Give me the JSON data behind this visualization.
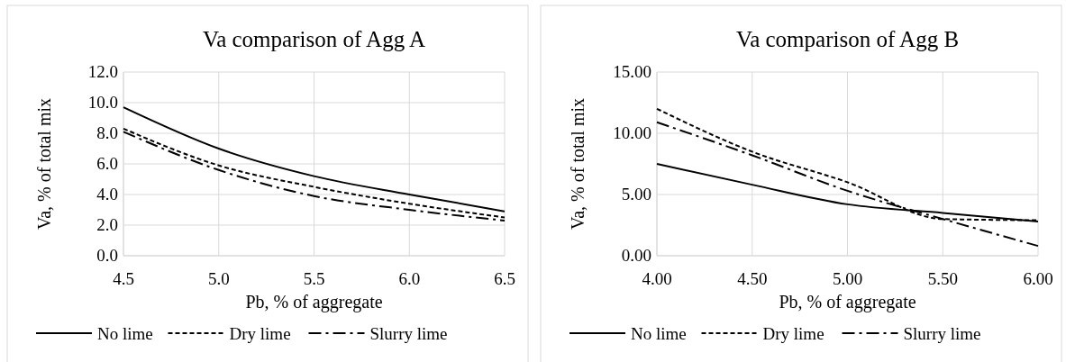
{
  "chart_data": [
    {
      "type": "line",
      "title": "Va comparison of Agg A",
      "xlabel": "Pb, % of aggregate",
      "ylabel": "Va, % of total mix",
      "x": [
        4.5,
        5.0,
        5.5,
        6.0,
        6.5
      ],
      "series": [
        {
          "name": "No lime",
          "color": "#000000",
          "line_style": "solid",
          "values": [
            9.7,
            7.0,
            5.2,
            4.0,
            2.9
          ]
        },
        {
          "name": "Dry lime",
          "color": "#000000",
          "line_style": "dotted",
          "values": [
            8.3,
            5.9,
            4.5,
            3.4,
            2.5
          ]
        },
        {
          "name": "Slurry lime",
          "color": "#000000",
          "line_style": "dashed",
          "values": [
            8.1,
            5.6,
            3.9,
            3.0,
            2.3
          ]
        }
      ],
      "xlim": [
        4.5,
        6.5
      ],
      "xticks": [
        {
          "value": 4.5,
          "label": "4.5"
        },
        {
          "value": 5.0,
          "label": "5.0"
        },
        {
          "value": 5.5,
          "label": "5.5"
        },
        {
          "value": 6.0,
          "label": "6.0"
        },
        {
          "value": 6.5,
          "label": "6.5"
        }
      ],
      "ylim": [
        0,
        12
      ],
      "yticks": [
        {
          "value": 0,
          "label": "0.0"
        },
        {
          "value": 2,
          "label": "2.0"
        },
        {
          "value": 4,
          "label": "4.0"
        },
        {
          "value": 6,
          "label": "6.0"
        },
        {
          "value": 8,
          "label": "8.0"
        },
        {
          "value": 10,
          "label": "10.0"
        },
        {
          "value": 12,
          "label": "12.0"
        }
      ],
      "grid": true,
      "legend": "bottom",
      "marker": "none"
    },
    {
      "type": "line",
      "title": "Va comparison of Agg B",
      "xlabel": "Pb, % of aggregate",
      "ylabel": "Va, % of total mix",
      "x": [
        4.0,
        4.5,
        5.0,
        5.5,
        6.0
      ],
      "series": [
        {
          "name": "No lime",
          "color": "#000000",
          "line_style": "solid",
          "values": [
            7.5,
            5.8,
            4.2,
            3.5,
            2.8
          ]
        },
        {
          "name": "Dry lime",
          "color": "#000000",
          "line_style": "dotted",
          "values": [
            12.0,
            8.5,
            6.0,
            3.0,
            2.9
          ]
        },
        {
          "name": "Slurry lime",
          "color": "#000000",
          "line_style": "dashed",
          "values": [
            10.9,
            8.2,
            5.3,
            3.0,
            0.8
          ]
        }
      ],
      "xlim": [
        4.0,
        6.0
      ],
      "xticks": [
        {
          "value": 4,
          "label": "4.00"
        },
        {
          "value": 4.5,
          "label": "4.50"
        },
        {
          "value": 5,
          "label": "5.00"
        },
        {
          "value": 5.5,
          "label": "5.50"
        },
        {
          "value": 6,
          "label": "6.00"
        }
      ],
      "ylim": [
        0,
        15
      ],
      "yticks": [
        {
          "value": 0,
          "label": "0.00"
        },
        {
          "value": 5,
          "label": "5.00"
        },
        {
          "value": 10,
          "label": "10.00"
        },
        {
          "value": 15,
          "label": "15.00"
        }
      ],
      "grid": true,
      "legend": "bottom",
      "marker": "none"
    }
  ]
}
